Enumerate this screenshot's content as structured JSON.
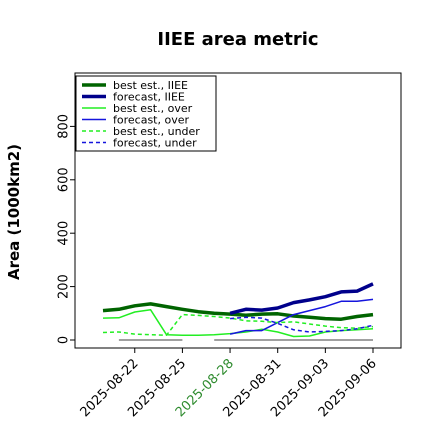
{
  "chart_data": {
    "type": "line",
    "title": "IIEE area metric",
    "ylabel": "Area (1000km2)",
    "xlabel": "",
    "ylim": [
      -30,
      1000
    ],
    "yticks": [
      0,
      200,
      400,
      600,
      800
    ],
    "x_dates": [
      "2025-08-20",
      "2025-08-21",
      "2025-08-22",
      "2025-08-23",
      "2025-08-24",
      "2025-08-25",
      "2025-08-26",
      "2025-08-27",
      "2025-08-28",
      "2025-08-29",
      "2025-08-30",
      "2025-08-31",
      "2025-09-01",
      "2025-09-02",
      "2025-09-03",
      "2025-09-04",
      "2025-09-05",
      "2025-09-06"
    ],
    "xticks": [
      "2025-08-22",
      "2025-08-25",
      "2025-08-28",
      "2025-08-31",
      "2025-09-03",
      "2025-09-06"
    ],
    "highlighted_tick": "2025-08-28",
    "highlight_color": "#2e8b2e",
    "grid": false,
    "legend_position": "upper-left",
    "series": [
      {
        "name": "best est., IIEE",
        "color": "#006400",
        "width": 3.5,
        "dash": "solid",
        "x": [
          "2025-08-20",
          "2025-08-21",
          "2025-08-22",
          "2025-08-23",
          "2025-08-24",
          "2025-08-25",
          "2025-08-26",
          "2025-08-27",
          "2025-08-28",
          "2025-08-29",
          "2025-08-30",
          "2025-08-31",
          "2025-09-01",
          "2025-09-02",
          "2025-09-03",
          "2025-09-04",
          "2025-09-05",
          "2025-09-06"
        ],
        "values": [
          110,
          115,
          128,
          135,
          125,
          115,
          106,
          100,
          97,
          93,
          97,
          98,
          90,
          85,
          80,
          78,
          88,
          95
        ]
      },
      {
        "name": "forecast, IIEE",
        "color": "#00008b",
        "width": 3.5,
        "dash": "solid",
        "x": [
          "2025-08-28",
          "2025-08-29",
          "2025-08-30",
          "2025-08-31",
          "2025-09-01",
          "2025-09-02",
          "2025-09-03",
          "2025-09-04",
          "2025-09-05",
          "2025-09-06"
        ],
        "values": [
          100,
          115,
          112,
          120,
          140,
          150,
          162,
          180,
          183,
          210
        ]
      },
      {
        "name": "best est., over",
        "color": "#22ee22",
        "width": 1.5,
        "dash": "solid",
        "x": [
          "2025-08-20",
          "2025-08-21",
          "2025-08-22",
          "2025-08-23",
          "2025-08-24",
          "2025-08-25",
          "2025-08-26",
          "2025-08-27",
          "2025-08-28",
          "2025-08-29",
          "2025-08-30",
          "2025-08-31",
          "2025-09-01",
          "2025-09-02",
          "2025-09-03",
          "2025-09-04",
          "2025-09-05",
          "2025-09-06"
        ],
        "values": [
          82,
          83,
          105,
          113,
          20,
          18,
          18,
          20,
          24,
          30,
          40,
          30,
          13,
          15,
          30,
          35,
          38,
          42
        ]
      },
      {
        "name": "forecast, over",
        "color": "#1515dd",
        "width": 1.5,
        "dash": "solid",
        "x": [
          "2025-08-28",
          "2025-08-29",
          "2025-08-30",
          "2025-08-31",
          "2025-09-01",
          "2025-09-02",
          "2025-09-03",
          "2025-09-04",
          "2025-09-05",
          "2025-09-06"
        ],
        "values": [
          22,
          35,
          35,
          65,
          95,
          110,
          125,
          145,
          145,
          152
        ]
      },
      {
        "name": "best est., under",
        "color": "#22ee22",
        "width": 1.5,
        "dash": "dashed",
        "x": [
          "2025-08-20",
          "2025-08-21",
          "2025-08-22",
          "2025-08-23",
          "2025-08-24",
          "2025-08-25",
          "2025-08-26",
          "2025-08-27",
          "2025-08-28",
          "2025-08-29",
          "2025-08-30",
          "2025-08-31",
          "2025-09-01",
          "2025-09-02",
          "2025-09-03",
          "2025-09-04",
          "2025-09-05",
          "2025-09-06"
        ],
        "values": [
          28,
          30,
          22,
          20,
          18,
          95,
          92,
          88,
          82,
          72,
          70,
          65,
          68,
          60,
          52,
          46,
          44,
          50
        ]
      },
      {
        "name": "forecast, under",
        "color": "#1515dd",
        "width": 1.5,
        "dash": "dashed",
        "x": [
          "2025-08-28",
          "2025-08-29",
          "2025-08-30",
          "2025-08-31",
          "2025-09-01",
          "2025-09-02",
          "2025-09-03",
          "2025-09-04",
          "2025-09-05",
          "2025-09-06"
        ],
        "values": [
          80,
          85,
          82,
          62,
          38,
          30,
          32,
          35,
          42,
          55
        ]
      },
      {
        "name": "",
        "color": "#808080",
        "width": 1.5,
        "dash": "solid",
        "x": [
          "2025-08-21",
          "2025-08-25"
        ],
        "values": [
          0,
          0
        ]
      },
      {
        "name": "",
        "color": "#808080",
        "width": 1.5,
        "dash": "solid",
        "x": [
          "2025-08-27",
          "2025-09-06"
        ],
        "values": [
          0,
          0
        ]
      }
    ]
  }
}
